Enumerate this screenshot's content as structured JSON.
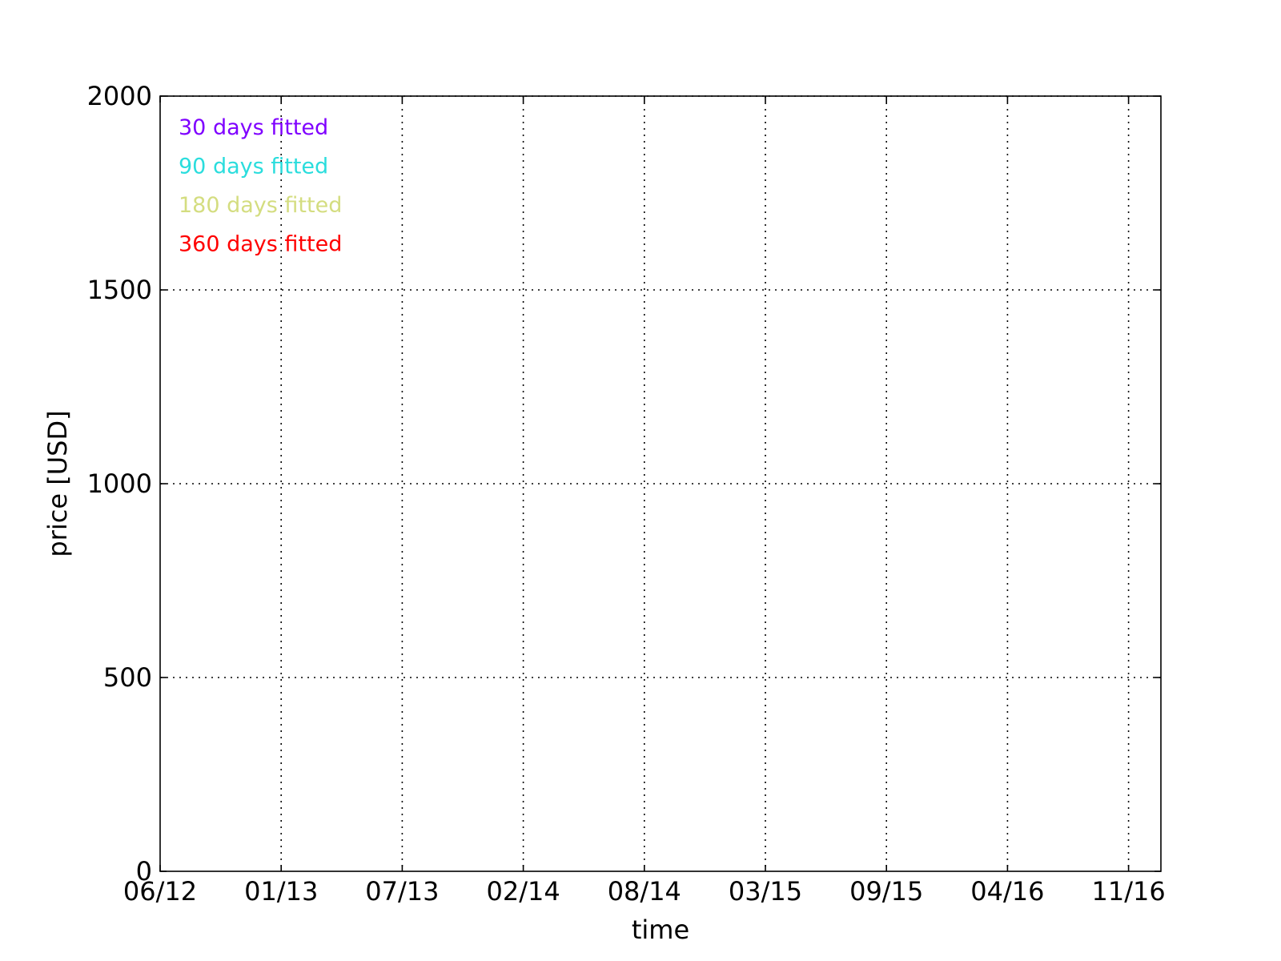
{
  "chart_data": {
    "type": "line",
    "title": "",
    "xlabel": "time",
    "ylabel": "price [USD]",
    "x_ticks": [
      "06/12",
      "01/13",
      "07/13",
      "02/14",
      "08/14",
      "03/15",
      "09/15",
      "04/16",
      "11/16"
    ],
    "y_ticks": [
      0,
      500,
      1000,
      1500,
      2000
    ],
    "ylim": [
      0,
      2000
    ],
    "grid": true,
    "legend_position": "top-left",
    "series": [
      {
        "name": "30 days fitted",
        "color": "#7f00ff",
        "values": []
      },
      {
        "name": "90 days fitted",
        "color": "#2adddd",
        "values": []
      },
      {
        "name": "180 days fitted",
        "color": "#d4dd80",
        "values": []
      },
      {
        "name": "360 days fitted",
        "color": "#ff0000",
        "values": []
      }
    ]
  }
}
